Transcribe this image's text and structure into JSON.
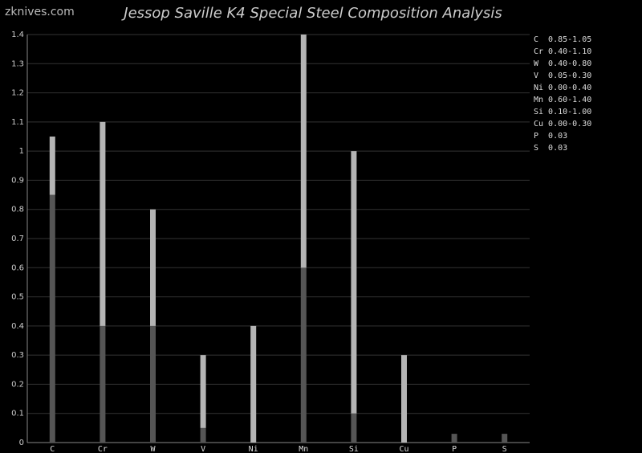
{
  "chart_data": {
    "type": "range-bar",
    "title": "Jessop Saville K4 Special Steel Composition Analysis",
    "watermark": "zknives.com",
    "categories": [
      "C",
      "Cr",
      "W",
      "V",
      "Ni",
      "Mn",
      "Si",
      "Cu",
      "P",
      "S"
    ],
    "low": [
      0.85,
      0.4,
      0.4,
      0.05,
      0.0,
      0.6,
      0.1,
      0.0,
      0.03,
      0.03
    ],
    "high": [
      1.05,
      1.1,
      0.8,
      0.3,
      0.4,
      1.4,
      1.0,
      0.3,
      0.03,
      0.03
    ],
    "low_color": "#555555",
    "high_color": "#b4b4b4",
    "ylim": [
      0,
      1.4
    ],
    "yticks": [
      0,
      0.1,
      0.2,
      0.3,
      0.4,
      0.5,
      0.6,
      0.7,
      0.8,
      0.9,
      1,
      1.1,
      1.2,
      1.3,
      1.4
    ],
    "grid": true,
    "annotations": [
      "C  0.85-1.05",
      "Cr 0.40-1.10",
      "W  0.40-0.80",
      "V  0.05-0.30",
      "Ni 0.00-0.40",
      "Mn 0.60-1.40",
      "Si 0.10-1.00",
      "Cu 0.00-0.30",
      "P  0.03",
      "S  0.03"
    ]
  }
}
